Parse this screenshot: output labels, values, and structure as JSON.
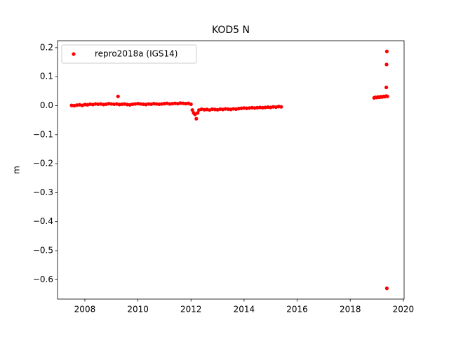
{
  "chart_data": {
    "type": "scatter",
    "title": "KOD5 N",
    "y_label": "m",
    "xlim": [
      2006.97,
      2020.03
    ],
    "ylim": [
      -0.667,
      0.224
    ],
    "xticks": [
      2008,
      2010,
      2012,
      2014,
      2016,
      2018,
      2020
    ],
    "yticks": [
      0.2,
      0.1,
      {
        "value": 0,
        "label": "0.0"
      },
      {
        "value": -0.1,
        "label": "−0.1"
      },
      {
        "value": -0.2,
        "label": "−0.2"
      },
      {
        "value": -0.3,
        "label": "−0.3"
      },
      {
        "value": -0.4,
        "label": "−0.4"
      },
      {
        "value": -0.5,
        "label": "−0.5"
      },
      {
        "value": -0.6,
        "label": "−0.6"
      }
    ],
    "legend": "upper left",
    "series": [
      {
        "name": "repro2018a (IGS14)",
        "color": "#ff0000",
        "x": [
          2007.5,
          2007.6,
          2007.7,
          2007.8,
          2007.9,
          2008.0,
          2008.1,
          2008.2,
          2008.3,
          2008.4,
          2008.5,
          2008.6,
          2008.7,
          2008.8,
          2008.9,
          2009.0,
          2009.1,
          2009.2,
          2009.25,
          2009.3,
          2009.4,
          2009.5,
          2009.6,
          2009.7,
          2009.8,
          2009.9,
          2010.0,
          2010.1,
          2010.2,
          2010.3,
          2010.4,
          2010.5,
          2010.6,
          2010.7,
          2010.8,
          2010.9,
          2011.0,
          2011.1,
          2011.2,
          2011.3,
          2011.4,
          2011.5,
          2011.6,
          2011.7,
          2011.8,
          2011.9,
          2012.0,
          2012.05,
          2012.1,
          2012.15,
          2012.2,
          2012.25,
          2012.3,
          2012.4,
          2012.5,
          2012.6,
          2012.7,
          2012.8,
          2012.9,
          2013.0,
          2013.1,
          2013.2,
          2013.3,
          2013.4,
          2013.5,
          2013.6,
          2013.7,
          2013.8,
          2013.9,
          2014.0,
          2014.1,
          2014.2,
          2014.3,
          2014.4,
          2014.5,
          2014.6,
          2014.7,
          2014.8,
          2014.9,
          2015.0,
          2015.1,
          2015.2,
          2015.3,
          2015.4,
          2018.9,
          2018.95,
          2019.0,
          2019.05,
          2019.1,
          2019.15,
          2019.2,
          2019.25,
          2019.3,
          2019.35,
          2019.4,
          2019.38,
          2019.37,
          2019.36,
          2019.38
        ],
        "values": [
          0.001,
          0.0,
          0.002,
          0.003,
          0.001,
          0.004,
          0.003,
          0.005,
          0.004,
          0.006,
          0.005,
          0.006,
          0.004,
          0.005,
          0.007,
          0.006,
          0.005,
          0.006,
          0.032,
          0.004,
          0.005,
          0.006,
          0.004,
          0.003,
          0.005,
          0.006,
          0.007,
          0.006,
          0.005,
          0.004,
          0.006,
          0.005,
          0.007,
          0.006,
          0.005,
          0.006,
          0.007,
          0.008,
          0.006,
          0.007,
          0.008,
          0.007,
          0.009,
          0.008,
          0.007,
          0.008,
          0.005,
          -0.015,
          -0.025,
          -0.03,
          -0.045,
          -0.025,
          -0.015,
          -0.012,
          -0.014,
          -0.013,
          -0.015,
          -0.012,
          -0.013,
          -0.014,
          -0.012,
          -0.013,
          -0.011,
          -0.012,
          -0.013,
          -0.011,
          -0.012,
          -0.01,
          -0.009,
          -0.008,
          -0.009,
          -0.008,
          -0.007,
          -0.008,
          -0.007,
          -0.006,
          -0.007,
          -0.006,
          -0.005,
          -0.006,
          -0.004,
          -0.005,
          -0.003,
          -0.004,
          0.027,
          0.029,
          0.028,
          0.03,
          0.029,
          0.031,
          0.03,
          0.032,
          0.031,
          0.033,
          0.032,
          0.187,
          0.142,
          0.063,
          -0.63
        ]
      }
    ]
  }
}
